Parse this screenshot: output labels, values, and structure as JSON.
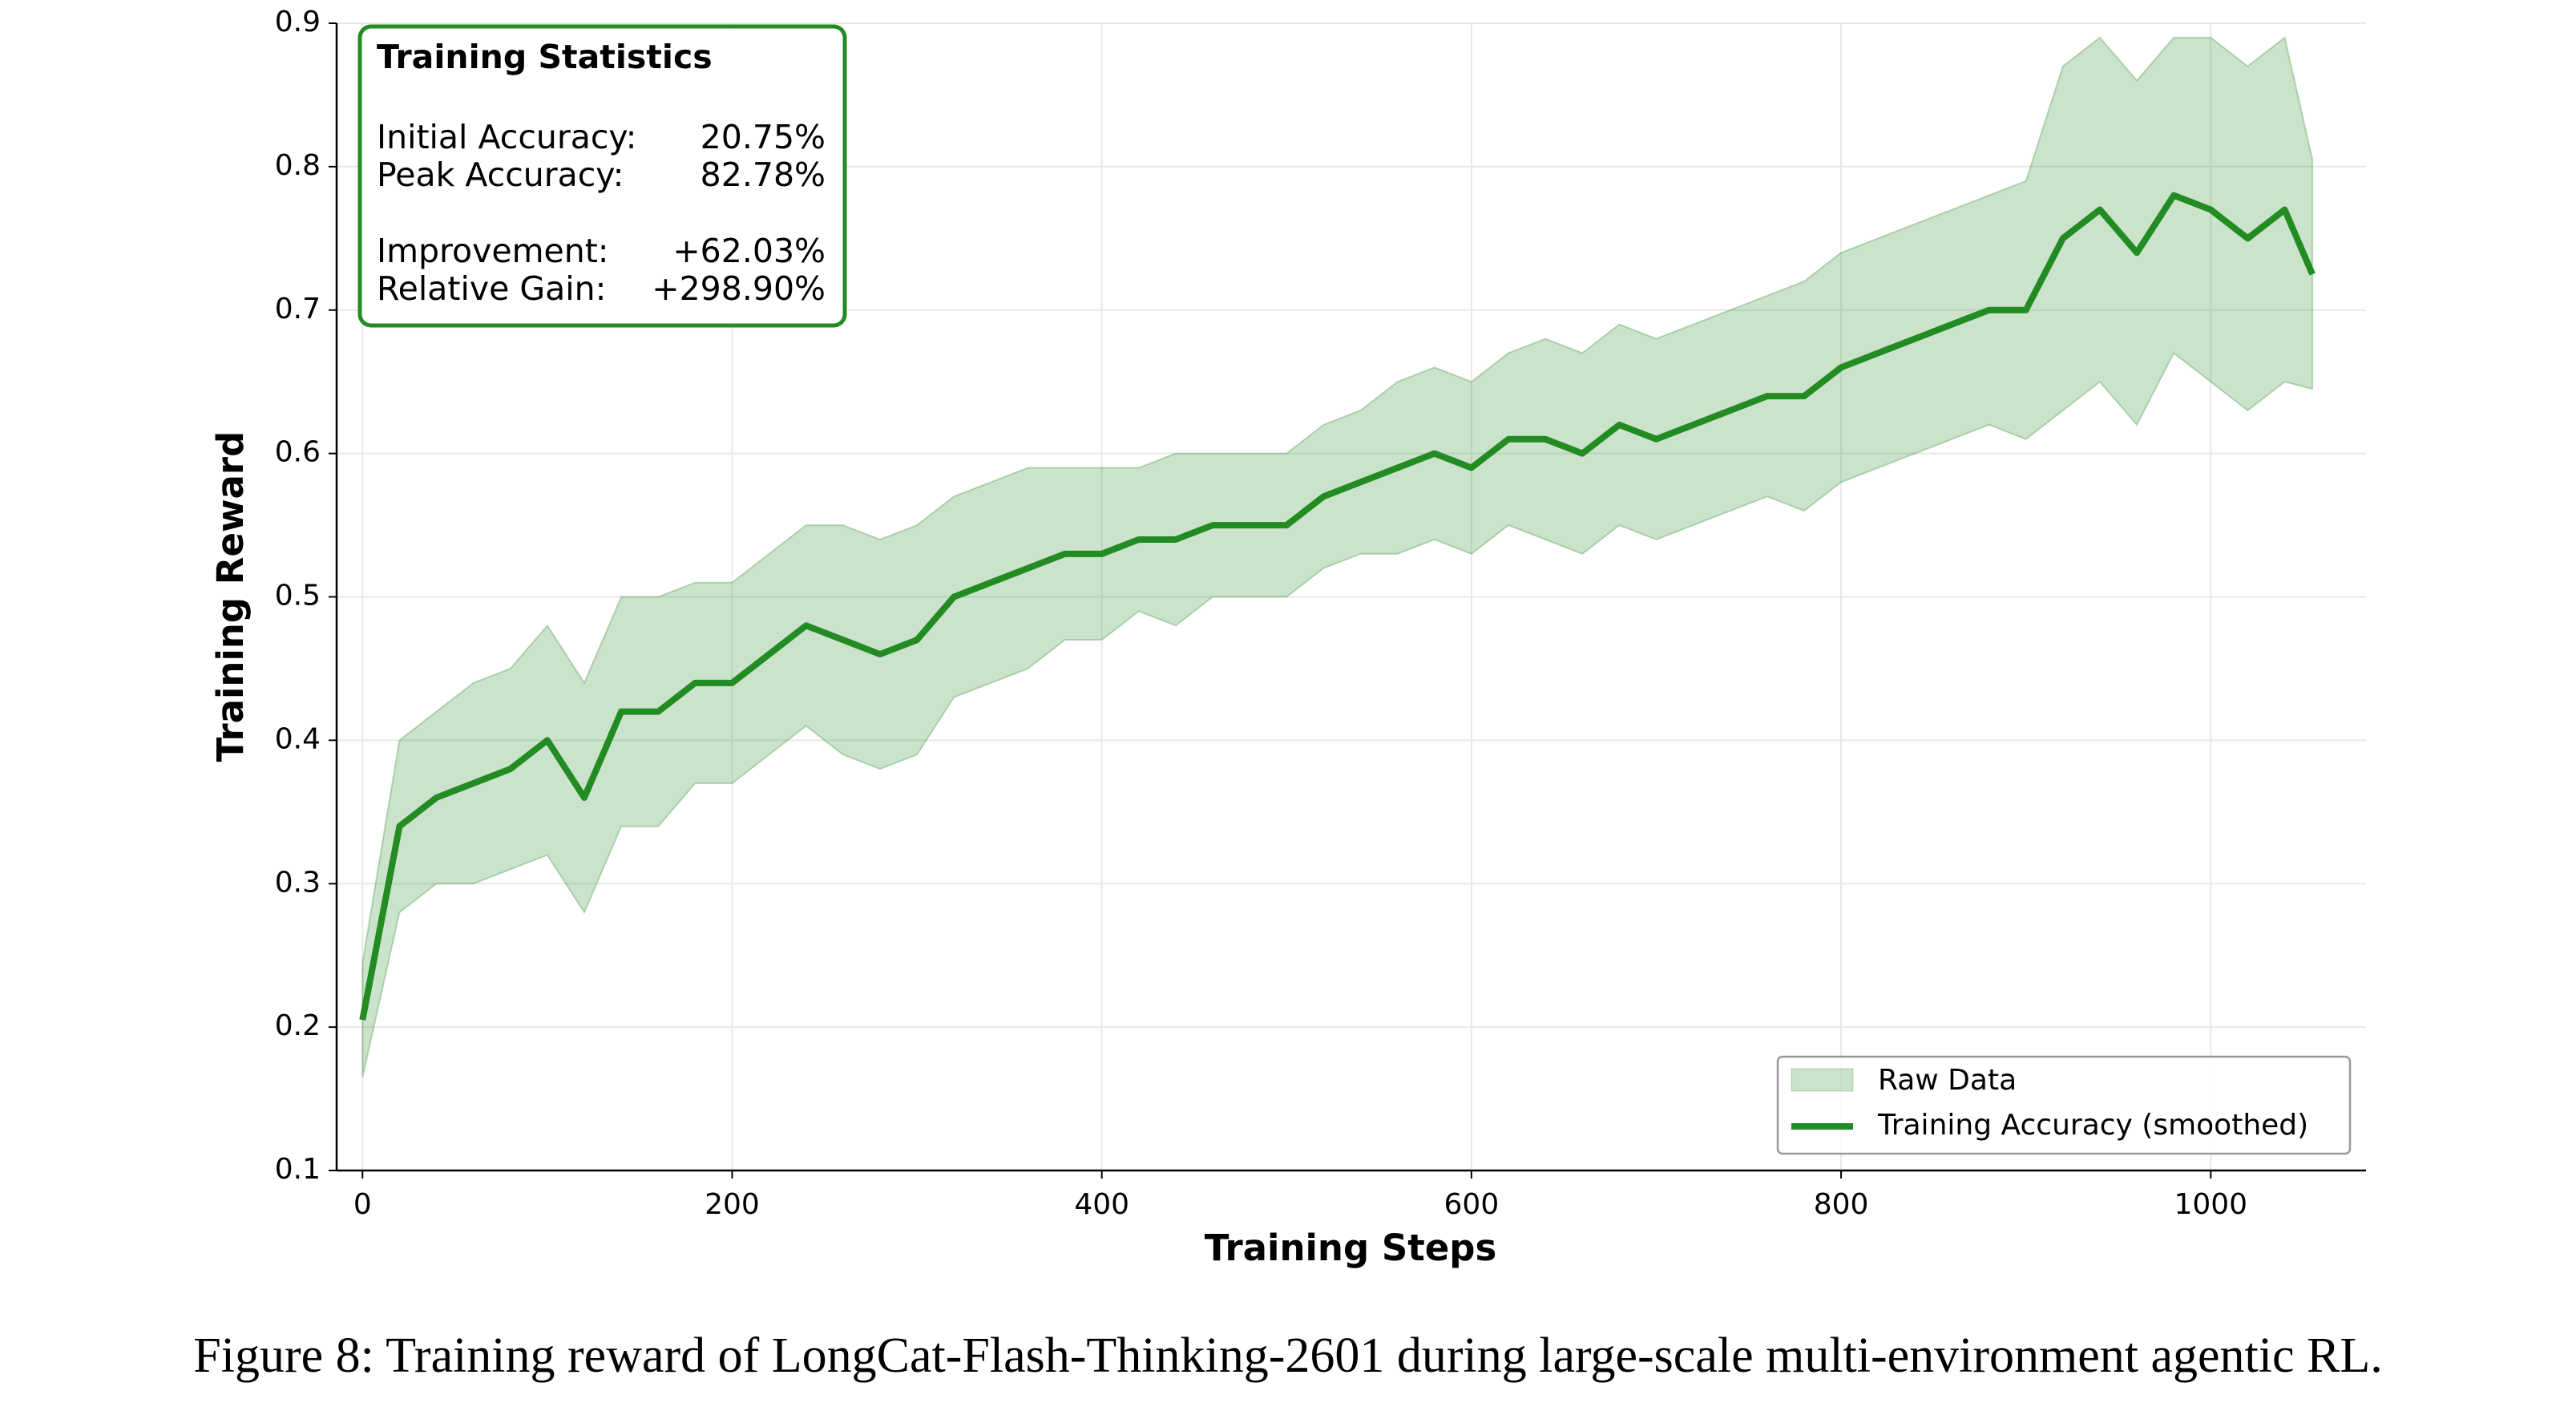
{
  "chart_data": {
    "type": "band-line",
    "xlabel": "Training Steps",
    "ylabel": "Training Reward",
    "x": [
      0,
      20,
      40,
      60,
      80,
      100,
      120,
      140,
      160,
      180,
      200,
      220,
      240,
      260,
      280,
      300,
      320,
      340,
      360,
      380,
      400,
      420,
      440,
      460,
      480,
      500,
      520,
      540,
      560,
      580,
      600,
      620,
      640,
      660,
      680,
      700,
      720,
      740,
      760,
      780,
      800,
      820,
      840,
      860,
      880,
      900,
      920,
      940,
      960,
      980,
      1000,
      1020,
      1040,
      1055
    ],
    "series": [
      {
        "name": "Raw Data",
        "color": "#2e8b2e",
        "low": [
          0.165,
          0.28,
          0.3,
          0.3,
          0.31,
          0.32,
          0.28,
          0.34,
          0.34,
          0.37,
          0.37,
          0.39,
          0.41,
          0.39,
          0.38,
          0.39,
          0.43,
          0.44,
          0.45,
          0.47,
          0.47,
          0.49,
          0.48,
          0.5,
          0.5,
          0.5,
          0.52,
          0.53,
          0.53,
          0.54,
          0.53,
          0.55,
          0.54,
          0.53,
          0.55,
          0.54,
          0.55,
          0.56,
          0.57,
          0.56,
          0.58,
          0.59,
          0.6,
          0.61,
          0.62,
          0.61,
          0.63,
          0.65,
          0.62,
          0.67,
          0.65,
          0.63,
          0.65,
          0.645
        ],
        "high": [
          0.245,
          0.4,
          0.42,
          0.44,
          0.45,
          0.48,
          0.44,
          0.5,
          0.5,
          0.51,
          0.51,
          0.53,
          0.55,
          0.55,
          0.54,
          0.55,
          0.57,
          0.58,
          0.59,
          0.59,
          0.59,
          0.59,
          0.6,
          0.6,
          0.6,
          0.6,
          0.62,
          0.63,
          0.65,
          0.66,
          0.65,
          0.67,
          0.68,
          0.67,
          0.69,
          0.68,
          0.69,
          0.7,
          0.71,
          0.72,
          0.74,
          0.75,
          0.76,
          0.77,
          0.78,
          0.79,
          0.87,
          0.89,
          0.86,
          0.89,
          0.89,
          0.87,
          0.89,
          0.805
        ]
      },
      {
        "name": "Training Accuracy (smoothed)",
        "color": "#228b22",
        "values": [
          0.205,
          0.34,
          0.36,
          0.37,
          0.38,
          0.4,
          0.36,
          0.42,
          0.42,
          0.44,
          0.44,
          0.46,
          0.48,
          0.47,
          0.46,
          0.47,
          0.5,
          0.51,
          0.52,
          0.53,
          0.53,
          0.54,
          0.54,
          0.55,
          0.55,
          0.55,
          0.57,
          0.58,
          0.59,
          0.6,
          0.59,
          0.61,
          0.61,
          0.6,
          0.62,
          0.61,
          0.62,
          0.63,
          0.64,
          0.64,
          0.66,
          0.67,
          0.68,
          0.69,
          0.7,
          0.7,
          0.75,
          0.77,
          0.74,
          0.78,
          0.77,
          0.75,
          0.77,
          0.725
        ]
      }
    ],
    "xlim": [
      -14,
      1084
    ],
    "ylim": [
      0.1,
      0.9
    ],
    "xticks": [
      0,
      200,
      400,
      600,
      800,
      1000
    ],
    "yticks": [
      0.1,
      0.2,
      0.3,
      0.4,
      0.5,
      0.6,
      0.7,
      0.8,
      0.9
    ],
    "grid": true,
    "legend": "lower right",
    "stats": {
      "title": "Training Statistics",
      "rows": [
        [
          {
            "label": "Initial Accuracy:",
            "value": "20.75%"
          },
          {
            "label": "Peak Accuracy:",
            "value": "82.78%"
          }
        ],
        [
          {
            "label": "Improvement:",
            "value": "+62.03%"
          },
          {
            "label": "Relative Gain:",
            "value": "+298.90%"
          }
        ]
      ]
    }
  },
  "caption": "Figure 8: Training reward of LongCat-Flash-Thinking-2601 during large-scale multi-environment agentic RL."
}
